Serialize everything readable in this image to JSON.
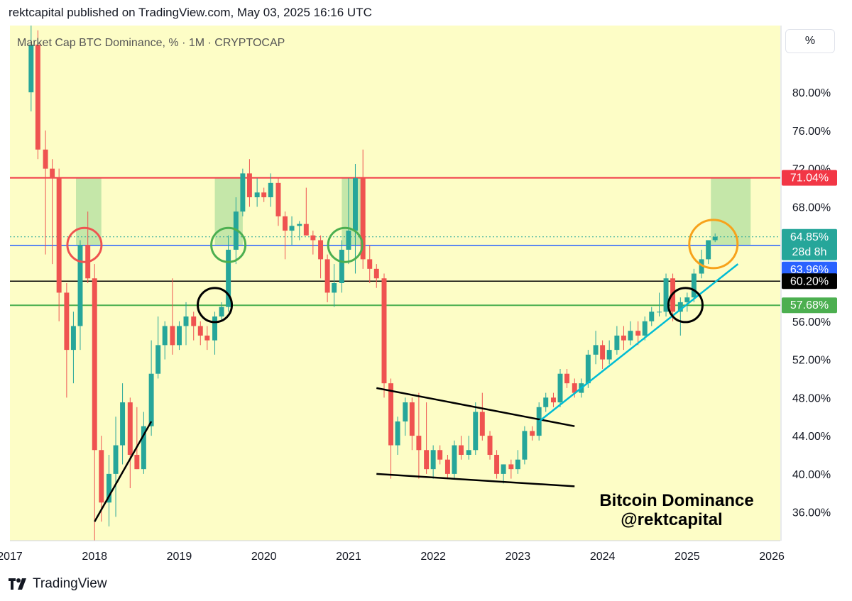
{
  "header": {
    "published": "rektcapital published on TradingView.com, May 03, 2025 16:16 UTC"
  },
  "footer": {
    "brand": "TradingView"
  },
  "scale_button": "%",
  "colors": {
    "background": "#fdfdc6",
    "up": "#26a69a",
    "down": "#ef5350",
    "resistance": "#f23645",
    "support": "#4caf50",
    "blue_line": "#2962ff",
    "black_line": "#000000",
    "trend_cyan": "#00bcd4",
    "zone": "#b7e1a1",
    "orange_circle": "#f7a21b"
  },
  "chart_data": {
    "type": "candlestick",
    "title": "Market Cap BTC Dominance, % · 1M · CRYPTOCAP",
    "symbol": "CRYPTOCAP",
    "interval": "1M",
    "ylim": [
      33,
      87
    ],
    "y_ticks": [
      "36.00%",
      "40.00%",
      "44.00%",
      "48.00%",
      "52.00%",
      "56.00%",
      "60.00%",
      "64.00%",
      "68.00%",
      "72.00%",
      "76.00%",
      "80.00%"
    ],
    "x_ticks": [
      "2017",
      "2018",
      "2019",
      "2020",
      "2021",
      "2022",
      "2023",
      "2024",
      "2025",
      "2026"
    ],
    "x_range": [
      2017.0,
      2026.1
    ],
    "levels": [
      {
        "name": "resistance",
        "value": 71.04,
        "label": "71.04%",
        "color": "#f23645"
      },
      {
        "name": "current-price",
        "value": 64.85,
        "label": "64.85%",
        "sub_label": "28d 8h",
        "color": "#26a69a"
      },
      {
        "name": "blue-level",
        "value": 63.96,
        "label": "63.96%",
        "color": "#2962ff"
      },
      {
        "name": "black-level",
        "value": 60.2,
        "label": "60.20%",
        "color": "#000000"
      },
      {
        "name": "support",
        "value": 57.68,
        "label": "57.68%",
        "color": "#4caf50"
      }
    ],
    "candles": [
      {
        "t": 2017.25,
        "o": 80.0,
        "h": 87.0,
        "l": 78.0,
        "c": 85.0
      },
      {
        "t": 2017.33,
        "o": 85.0,
        "h": 86.5,
        "l": 73.0,
        "c": 74.0
      },
      {
        "t": 2017.42,
        "o": 74.0,
        "h": 76.0,
        "l": 63.0,
        "c": 72.0
      },
      {
        "t": 2017.5,
        "o": 72.0,
        "h": 73.0,
        "l": 62.0,
        "c": 71.0
      },
      {
        "t": 2017.58,
        "o": 71.0,
        "h": 72.0,
        "l": 56.0,
        "c": 59.0
      },
      {
        "t": 2017.67,
        "o": 59.0,
        "h": 60.0,
        "l": 48.0,
        "c": 53.0
      },
      {
        "t": 2017.75,
        "o": 53.0,
        "h": 57.0,
        "l": 49.5,
        "c": 55.5
      },
      {
        "t": 2017.83,
        "o": 55.5,
        "h": 64.5,
        "l": 53.0,
        "c": 64.0
      },
      {
        "t": 2017.92,
        "o": 64.0,
        "h": 67.5,
        "l": 60.0,
        "c": 60.5
      },
      {
        "t": 2018.0,
        "o": 60.5,
        "h": 62.0,
        "l": 32.0,
        "c": 42.5
      },
      {
        "t": 2018.08,
        "o": 42.5,
        "h": 44.0,
        "l": 35.0,
        "c": 37.0
      },
      {
        "t": 2018.17,
        "o": 37.0,
        "h": 42.0,
        "l": 34.5,
        "c": 40.0
      },
      {
        "t": 2018.25,
        "o": 40.0,
        "h": 46.0,
        "l": 35.5,
        "c": 43.0
      },
      {
        "t": 2018.33,
        "o": 43.0,
        "h": 49.5,
        "l": 41.0,
        "c": 47.5
      },
      {
        "t": 2018.42,
        "o": 47.5,
        "h": 48.0,
        "l": 38.5,
        "c": 42.0
      },
      {
        "t": 2018.5,
        "o": 42.0,
        "h": 47.0,
        "l": 40.5,
        "c": 40.5
      },
      {
        "t": 2018.58,
        "o": 40.5,
        "h": 46.5,
        "l": 40.0,
        "c": 45.0
      },
      {
        "t": 2018.67,
        "o": 45.0,
        "h": 54.0,
        "l": 44.0,
        "c": 50.5
      },
      {
        "t": 2018.75,
        "o": 50.5,
        "h": 56.5,
        "l": 50.0,
        "c": 53.5
      },
      {
        "t": 2018.83,
        "o": 53.5,
        "h": 56.0,
        "l": 52.0,
        "c": 55.5
      },
      {
        "t": 2018.92,
        "o": 55.5,
        "h": 60.5,
        "l": 52.5,
        "c": 53.5
      },
      {
        "t": 2019.0,
        "o": 53.5,
        "h": 56.0,
        "l": 53.0,
        "c": 55.5
      },
      {
        "t": 2019.08,
        "o": 55.5,
        "h": 58.0,
        "l": 53.5,
        "c": 56.5
      },
      {
        "t": 2019.17,
        "o": 56.5,
        "h": 57.0,
        "l": 54.0,
        "c": 55.5
      },
      {
        "t": 2019.25,
        "o": 55.5,
        "h": 56.0,
        "l": 53.5,
        "c": 54.5
      },
      {
        "t": 2019.33,
        "o": 54.5,
        "h": 55.5,
        "l": 53.0,
        "c": 54.0
      },
      {
        "t": 2019.42,
        "o": 54.0,
        "h": 57.0,
        "l": 52.5,
        "c": 56.5
      },
      {
        "t": 2019.5,
        "o": 56.5,
        "h": 58.0,
        "l": 56.0,
        "c": 57.5
      },
      {
        "t": 2019.58,
        "o": 57.5,
        "h": 65.0,
        "l": 57.0,
        "c": 63.5
      },
      {
        "t": 2019.67,
        "o": 63.5,
        "h": 69.0,
        "l": 62.0,
        "c": 67.5
      },
      {
        "t": 2019.75,
        "o": 67.5,
        "h": 72.0,
        "l": 67.0,
        "c": 71.5
      },
      {
        "t": 2019.83,
        "o": 71.5,
        "h": 73.0,
        "l": 68.0,
        "c": 69.0
      },
      {
        "t": 2019.92,
        "o": 69.0,
        "h": 71.0,
        "l": 68.0,
        "c": 69.5
      },
      {
        "t": 2020.0,
        "o": 69.5,
        "h": 70.0,
        "l": 68.5,
        "c": 69.0
      },
      {
        "t": 2020.08,
        "o": 69.0,
        "h": 71.5,
        "l": 68.0,
        "c": 70.5
      },
      {
        "t": 2020.17,
        "o": 70.5,
        "h": 71.0,
        "l": 66.0,
        "c": 67.0
      },
      {
        "t": 2020.25,
        "o": 67.0,
        "h": 67.5,
        "l": 62.5,
        "c": 65.5
      },
      {
        "t": 2020.33,
        "o": 65.5,
        "h": 67.0,
        "l": 64.0,
        "c": 66.0
      },
      {
        "t": 2020.42,
        "o": 66.0,
        "h": 66.5,
        "l": 64.5,
        "c": 66.2
      },
      {
        "t": 2020.5,
        "o": 66.2,
        "h": 70.0,
        "l": 65.0,
        "c": 65.0
      },
      {
        "t": 2020.58,
        "o": 65.0,
        "h": 65.5,
        "l": 63.0,
        "c": 64.5
      },
      {
        "t": 2020.67,
        "o": 64.5,
        "h": 65.0,
        "l": 60.5,
        "c": 62.5
      },
      {
        "t": 2020.75,
        "o": 62.5,
        "h": 63.0,
        "l": 58.0,
        "c": 59.0
      },
      {
        "t": 2020.83,
        "o": 59.0,
        "h": 62.0,
        "l": 57.5,
        "c": 60.0
      },
      {
        "t": 2020.92,
        "o": 60.0,
        "h": 64.5,
        "l": 59.0,
        "c": 63.5
      },
      {
        "t": 2021.0,
        "o": 63.5,
        "h": 71.0,
        "l": 62.0,
        "c": 65.5
      },
      {
        "t": 2021.08,
        "o": 65.5,
        "h": 72.5,
        "l": 61.0,
        "c": 71.0
      },
      {
        "t": 2021.17,
        "o": 71.0,
        "h": 74.0,
        "l": 61.5,
        "c": 62.5
      },
      {
        "t": 2021.25,
        "o": 62.5,
        "h": 64.0,
        "l": 60.0,
        "c": 61.5
      },
      {
        "t": 2021.33,
        "o": 61.5,
        "h": 62.0,
        "l": 59.5,
        "c": 60.5
      },
      {
        "t": 2021.42,
        "o": 60.5,
        "h": 61.0,
        "l": 48.0,
        "c": 49.5
      },
      {
        "t": 2021.5,
        "o": 49.5,
        "h": 50.0,
        "l": 39.5,
        "c": 43.0
      },
      {
        "t": 2021.58,
        "o": 43.0,
        "h": 46.0,
        "l": 42.0,
        "c": 45.5
      },
      {
        "t": 2021.67,
        "o": 45.5,
        "h": 48.0,
        "l": 44.0,
        "c": 47.5
      },
      {
        "t": 2021.75,
        "o": 47.5,
        "h": 48.0,
        "l": 42.5,
        "c": 44.0
      },
      {
        "t": 2021.83,
        "o": 44.0,
        "h": 48.5,
        "l": 39.5,
        "c": 42.5
      },
      {
        "t": 2021.92,
        "o": 42.5,
        "h": 47.5,
        "l": 40.0,
        "c": 40.5
      },
      {
        "t": 2022.0,
        "o": 40.5,
        "h": 43.0,
        "l": 39.5,
        "c": 42.5
      },
      {
        "t": 2022.08,
        "o": 42.5,
        "h": 43.0,
        "l": 41.0,
        "c": 41.5
      },
      {
        "t": 2022.17,
        "o": 41.5,
        "h": 42.0,
        "l": 39.5,
        "c": 40.0
      },
      {
        "t": 2022.25,
        "o": 40.0,
        "h": 43.5,
        "l": 39.5,
        "c": 43.0
      },
      {
        "t": 2022.33,
        "o": 43.0,
        "h": 44.0,
        "l": 41.5,
        "c": 42.0
      },
      {
        "t": 2022.42,
        "o": 42.0,
        "h": 44.0,
        "l": 41.5,
        "c": 42.5
      },
      {
        "t": 2022.5,
        "o": 42.5,
        "h": 47.5,
        "l": 42.0,
        "c": 46.5
      },
      {
        "t": 2022.58,
        "o": 46.5,
        "h": 48.5,
        "l": 43.5,
        "c": 44.0
      },
      {
        "t": 2022.67,
        "o": 44.0,
        "h": 44.5,
        "l": 41.5,
        "c": 42.0
      },
      {
        "t": 2022.75,
        "o": 42.0,
        "h": 42.5,
        "l": 39.5,
        "c": 40.0
      },
      {
        "t": 2022.83,
        "o": 40.0,
        "h": 41.0,
        "l": 39.0,
        "c": 41.0
      },
      {
        "t": 2022.92,
        "o": 41.0,
        "h": 41.5,
        "l": 39.5,
        "c": 40.5
      },
      {
        "t": 2023.0,
        "o": 40.5,
        "h": 42.5,
        "l": 40.0,
        "c": 41.5
      },
      {
        "t": 2023.08,
        "o": 41.5,
        "h": 45.0,
        "l": 41.0,
        "c": 44.5
      },
      {
        "t": 2023.17,
        "o": 44.5,
        "h": 45.0,
        "l": 43.5,
        "c": 44.0
      },
      {
        "t": 2023.25,
        "o": 44.0,
        "h": 47.5,
        "l": 43.5,
        "c": 47.0
      },
      {
        "t": 2023.33,
        "o": 47.0,
        "h": 48.5,
        "l": 46.5,
        "c": 48.0
      },
      {
        "t": 2023.42,
        "o": 48.0,
        "h": 48.5,
        "l": 47.0,
        "c": 47.5
      },
      {
        "t": 2023.5,
        "o": 47.5,
        "h": 51.0,
        "l": 47.0,
        "c": 50.5
      },
      {
        "t": 2023.58,
        "o": 50.5,
        "h": 51.0,
        "l": 49.0,
        "c": 49.5
      },
      {
        "t": 2023.67,
        "o": 49.5,
        "h": 50.0,
        "l": 48.0,
        "c": 48.5
      },
      {
        "t": 2023.75,
        "o": 48.5,
        "h": 50.0,
        "l": 48.0,
        "c": 49.5
      },
      {
        "t": 2023.83,
        "o": 49.5,
        "h": 53.0,
        "l": 49.0,
        "c": 52.5
      },
      {
        "t": 2023.92,
        "o": 52.5,
        "h": 55.0,
        "l": 51.5,
        "c": 53.5
      },
      {
        "t": 2024.0,
        "o": 53.5,
        "h": 54.0,
        "l": 51.0,
        "c": 52.0
      },
      {
        "t": 2024.08,
        "o": 52.0,
        "h": 54.0,
        "l": 51.5,
        "c": 53.0
      },
      {
        "t": 2024.17,
        "o": 53.0,
        "h": 55.5,
        "l": 52.5,
        "c": 54.5
      },
      {
        "t": 2024.25,
        "o": 54.5,
        "h": 55.5,
        "l": 53.0,
        "c": 54.0
      },
      {
        "t": 2024.33,
        "o": 54.0,
        "h": 56.0,
        "l": 53.5,
        "c": 55.0
      },
      {
        "t": 2024.42,
        "o": 55.0,
        "h": 56.0,
        "l": 53.5,
        "c": 54.5
      },
      {
        "t": 2024.5,
        "o": 54.5,
        "h": 56.5,
        "l": 54.0,
        "c": 56.0
      },
      {
        "t": 2024.58,
        "o": 56.0,
        "h": 57.5,
        "l": 55.5,
        "c": 57.0
      },
      {
        "t": 2024.67,
        "o": 57.0,
        "h": 59.0,
        "l": 56.5,
        "c": 57.0
      },
      {
        "t": 2024.75,
        "o": 57.0,
        "h": 61.0,
        "l": 56.5,
        "c": 60.5
      },
      {
        "t": 2024.83,
        "o": 60.5,
        "h": 61.0,
        "l": 56.0,
        "c": 57.0
      },
      {
        "t": 2024.92,
        "o": 57.0,
        "h": 58.5,
        "l": 54.5,
        "c": 58.0
      },
      {
        "t": 2025.0,
        "o": 58.0,
        "h": 59.0,
        "l": 57.0,
        "c": 58.5
      },
      {
        "t": 2025.08,
        "o": 58.5,
        "h": 61.5,
        "l": 58.0,
        "c": 61.0
      },
      {
        "t": 2025.17,
        "o": 61.0,
        "h": 63.5,
        "l": 60.5,
        "c": 62.5
      },
      {
        "t": 2025.25,
        "o": 62.5,
        "h": 64.5,
        "l": 62.0,
        "c": 64.5
      },
      {
        "t": 2025.33,
        "o": 64.5,
        "h": 65.2,
        "l": 64.3,
        "c": 64.85
      }
    ],
    "zones": [
      {
        "t0": 2017.78,
        "t1": 2018.08,
        "y0": 64.0,
        "y1": 71.04
      },
      {
        "t0": 2019.42,
        "t1": 2019.75,
        "y0": 64.0,
        "y1": 71.04
      },
      {
        "t0": 2020.92,
        "t1": 2021.17,
        "y0": 64.0,
        "y1": 71.04
      },
      {
        "t0": 2025.28,
        "t1": 2025.75,
        "y0": 64.0,
        "y1": 71.04
      }
    ],
    "trendlines": [
      {
        "name": "trendline-2018",
        "color": "#000000",
        "points": [
          [
            2018.0,
            35.0
          ],
          [
            2018.67,
            45.5
          ]
        ]
      },
      {
        "name": "wedge-upper",
        "color": "#000000",
        "points": [
          [
            2021.33,
            49.0
          ],
          [
            2023.67,
            45.0
          ]
        ]
      },
      {
        "name": "wedge-lower",
        "color": "#000000",
        "points": [
          [
            2021.33,
            40.0
          ],
          [
            2023.67,
            38.7
          ]
        ]
      },
      {
        "name": "uptrend-2023-2025",
        "color": "#00bcd4",
        "points": [
          [
            2023.25,
            45.5
          ],
          [
            2025.6,
            62.0
          ]
        ]
      }
    ],
    "circles": [
      {
        "name": "red-circle-2018",
        "t": 2017.88,
        "v": 64.0,
        "color": "#ef5350"
      },
      {
        "name": "green-circle-2019",
        "t": 2019.58,
        "v": 64.0,
        "color": "#4caf50"
      },
      {
        "name": "green-circle-2021",
        "t": 2020.96,
        "v": 64.0,
        "color": "#4caf50"
      },
      {
        "name": "black-circle-2019",
        "t": 2019.42,
        "v": 57.7,
        "color": "#000000"
      },
      {
        "name": "black-circle-2025",
        "t": 2024.98,
        "v": 57.7,
        "color": "#000000"
      },
      {
        "name": "orange-circle-2025",
        "t": 2025.31,
        "v": 64.1,
        "color": "#f7a21b"
      }
    ],
    "annotations": {
      "title_line1": "Bitcoin Dominance",
      "title_line2": "@rektcapital"
    }
  }
}
